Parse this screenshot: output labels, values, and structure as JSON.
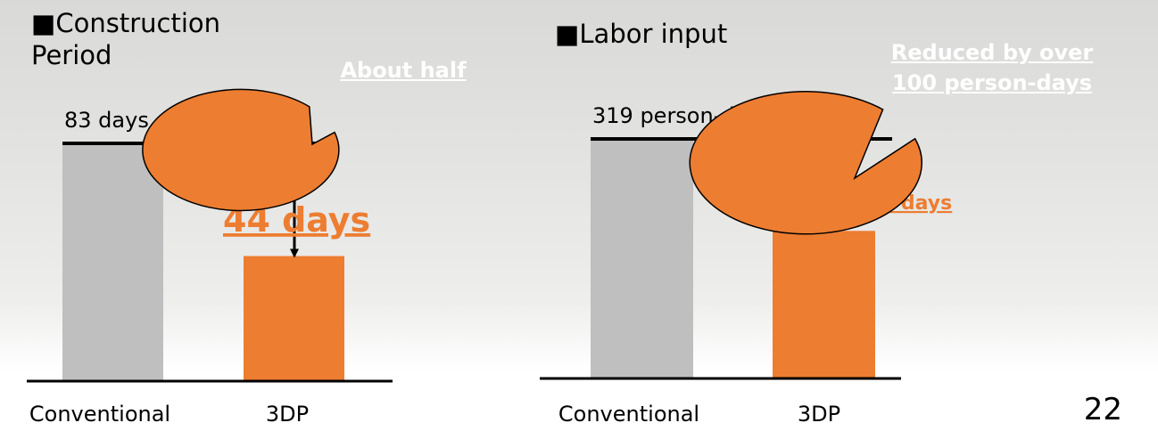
{
  "chart_data": [
    {
      "type": "bar",
      "title": "■Construction Period",
      "categories": [
        "Conventional",
        "3DP"
      ],
      "values": [
        83,
        44
      ],
      "value_labels": [
        "83 days",
        "44 days"
      ],
      "colors": [
        "#bfbfbf",
        "#ed7d31"
      ],
      "annotation": "About half"
    },
    {
      "type": "bar",
      "title": "■Labor input",
      "categories": [
        "Conventional",
        "3DP"
      ],
      "values": [
        319,
        198
      ],
      "value_labels": [
        "319 person-days",
        "198"
      ],
      "value_label_unit": "person-days",
      "colors": [
        "#bfbfbf",
        "#ed7d31"
      ],
      "annotation": "Reduced by over 100 person-days"
    }
  ],
  "page_number": "22"
}
